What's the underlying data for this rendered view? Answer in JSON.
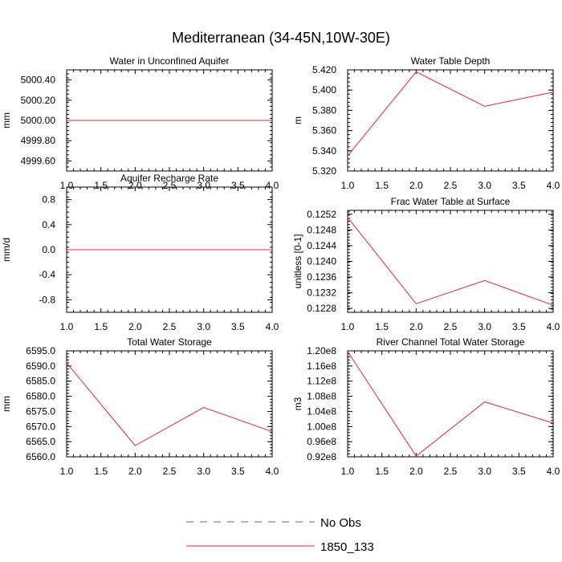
{
  "title": "Mediterranean (34-45N,10W-30E)",
  "chart_data": [
    {
      "type": "line",
      "title": "Water in Unconfined Aquifer",
      "ylabel": "mm",
      "x": [
        1,
        2,
        3,
        4
      ],
      "xlim": [
        1.0,
        4.0
      ],
      "xticks": [
        "1.0",
        "1.5",
        "2.0",
        "2.5",
        "3.0",
        "3.5",
        "4.0"
      ],
      "ylim": [
        4999.5,
        5000.5
      ],
      "yticks": [
        "4999.60",
        "4999.80",
        "5000.00",
        "5000.20",
        "5000.40"
      ],
      "series": [
        {
          "name": "1850_133",
          "values": [
            5000.0,
            5000.0,
            5000.0,
            5000.0
          ]
        }
      ]
    },
    {
      "type": "line",
      "title": "Water Table Depth",
      "ylabel": "m",
      "x": [
        1,
        2,
        3,
        4
      ],
      "xlim": [
        1.0,
        4.0
      ],
      "xticks": [
        "1.0",
        "1.5",
        "2.0",
        "2.5",
        "3.0",
        "3.5",
        "4.0"
      ],
      "ylim": [
        5.32,
        5.42
      ],
      "yticks": [
        "5.320",
        "5.340",
        "5.360",
        "5.380",
        "5.400",
        "5.420"
      ],
      "series": [
        {
          "name": "1850_133",
          "values": [
            5.335,
            5.418,
            5.384,
            5.398
          ]
        }
      ]
    },
    {
      "type": "line",
      "title": "Aquifer Recharge Rate",
      "ylabel": "mm/d",
      "x": [
        1,
        2,
        3,
        4
      ],
      "xlim": [
        1.0,
        4.0
      ],
      "xticks": [
        "1.0",
        "1.5",
        "2.0",
        "2.5",
        "3.0",
        "3.5",
        "4.0"
      ],
      "ylim": [
        -1.0,
        1.0
      ],
      "yticks": [
        "-0.8",
        "-0.4",
        "0.0",
        "0.4",
        "0.8"
      ],
      "series": [
        {
          "name": "1850_133",
          "values": [
            0.0,
            0.0,
            0.0,
            0.0
          ]
        }
      ]
    },
    {
      "type": "line",
      "title": "Frac Water Table at Surface",
      "ylabel": "unitless [0-1]",
      "x": [
        1,
        2,
        3,
        4
      ],
      "xlim": [
        1.0,
        4.0
      ],
      "xticks": [
        "1.0",
        "1.5",
        "2.0",
        "2.5",
        "3.0",
        "3.5",
        "4.0"
      ],
      "ylim": [
        0.1227,
        0.1253
      ],
      "yticks": [
        "0.1228",
        "0.1232",
        "0.1236",
        "0.1240",
        "0.1244",
        "0.1248",
        "0.1252"
      ],
      "series": [
        {
          "name": "1850_133",
          "values": [
            0.12512,
            0.12292,
            0.12351,
            0.12288
          ]
        }
      ]
    },
    {
      "type": "line",
      "title": "Total Water Storage",
      "ylabel": "mm",
      "x": [
        1,
        2,
        3,
        4
      ],
      "xlim": [
        1.0,
        4.0
      ],
      "xticks": [
        "1.0",
        "1.5",
        "2.0",
        "2.5",
        "3.0",
        "3.5",
        "4.0"
      ],
      "ylim": [
        6560.0,
        6595.0
      ],
      "yticks": [
        "6560.0",
        "6565.0",
        "6570.0",
        "6575.0",
        "6580.0",
        "6585.0",
        "6590.0",
        "6595.0"
      ],
      "series": [
        {
          "name": "1850_133",
          "values": [
            6591.0,
            6563.7,
            6576.3,
            6568.3
          ]
        }
      ]
    },
    {
      "type": "line",
      "title": "River Channel Total Water Storage",
      "ylabel": "m3",
      "x": [
        1,
        2,
        3,
        4
      ],
      "xlim": [
        1.0,
        4.0
      ],
      "xticks": [
        "1.0",
        "1.5",
        "2.0",
        "2.5",
        "3.0",
        "3.5",
        "4.0"
      ],
      "ylim": [
        92000000,
        120000000
      ],
      "yticks": [
        "0.92e8",
        "0.96e8",
        "1.00e8",
        "1.04e8",
        "1.08e8",
        "1.12e8",
        "1.16e8",
        "1.20e8"
      ],
      "series": [
        {
          "name": "1850_133",
          "values": [
            119800000,
            92200000,
            106500000,
            100900000
          ]
        }
      ]
    }
  ],
  "legend": [
    {
      "label": "No Obs",
      "color": "#5b5bd6",
      "style": "dashed"
    },
    {
      "label": "1850_133",
      "color": "#e8262b",
      "style": "solid"
    }
  ],
  "line_color": "#e8262b"
}
